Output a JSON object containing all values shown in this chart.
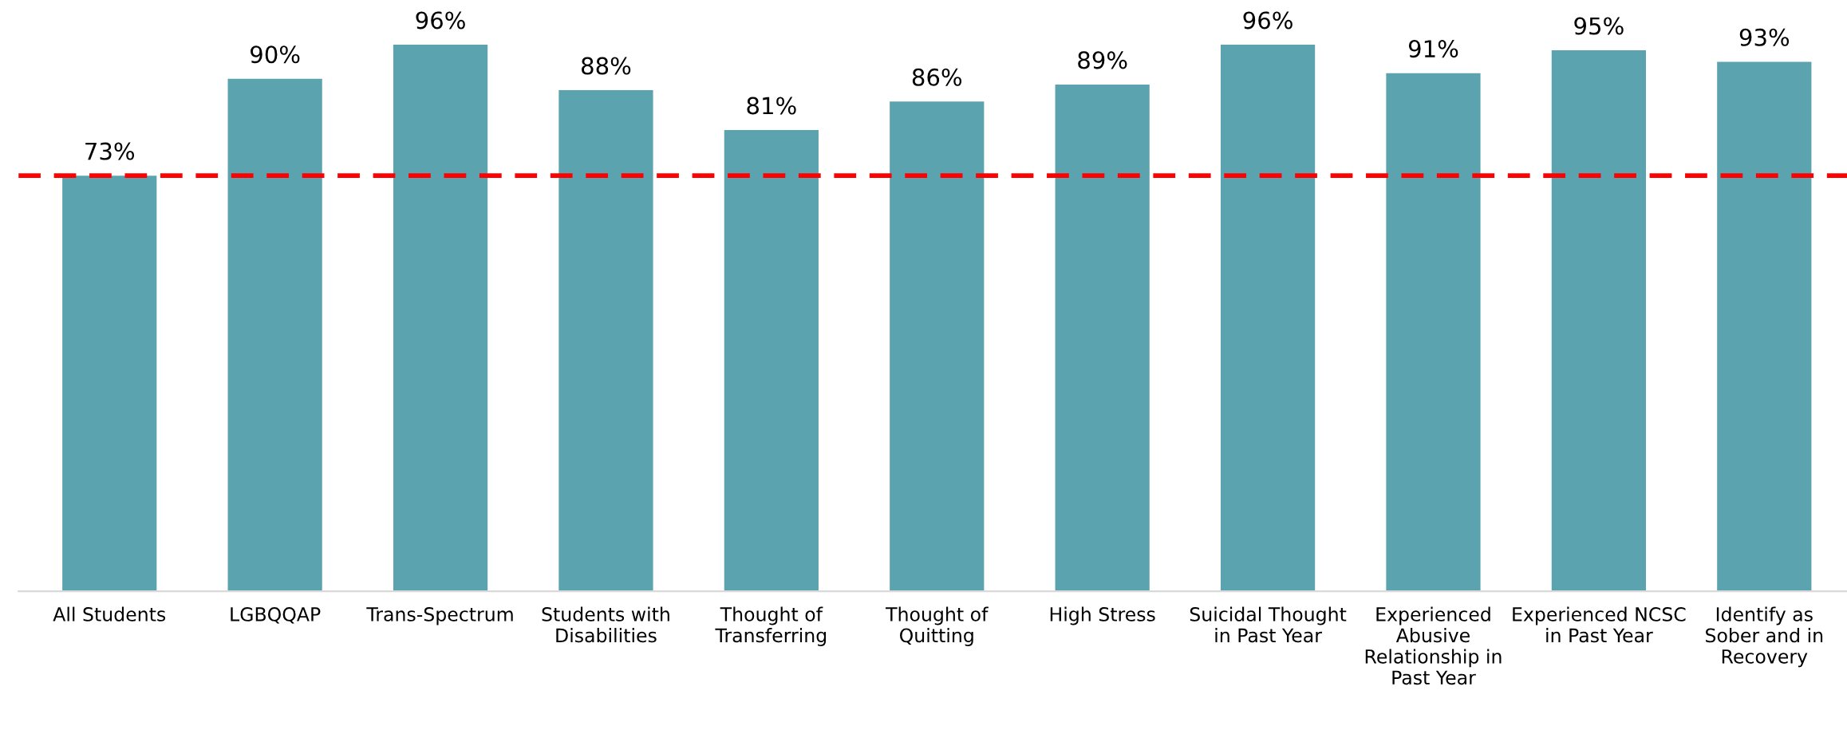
{
  "chart_data": {
    "type": "bar",
    "categories": [
      "All Students",
      "LGBQQAP",
      "Trans-Spectrum",
      "Students with Disabilities",
      "Thought of Transferring",
      "Thought of Quitting",
      "High Stress",
      "Suicidal Thought in Past Year",
      "Experienced Abusive Relationship in Past Year",
      "Experienced NCSC in Past Year",
      "Identify as Sober and in Recovery"
    ],
    "values": [
      73,
      90,
      96,
      88,
      81,
      86,
      89,
      96,
      91,
      95,
      93
    ],
    "value_labels": [
      "73%",
      "90%",
      "96%",
      "88%",
      "81%",
      "86%",
      "89%",
      "96%",
      "91%",
      "95%",
      "93%"
    ],
    "color": "#5ba3ae",
    "ref_lines": [
      {
        "axis": "y",
        "value": 73,
        "color": "#ff0000",
        "line_style": "dashed"
      }
    ],
    "grid": false,
    "legend": false
  }
}
